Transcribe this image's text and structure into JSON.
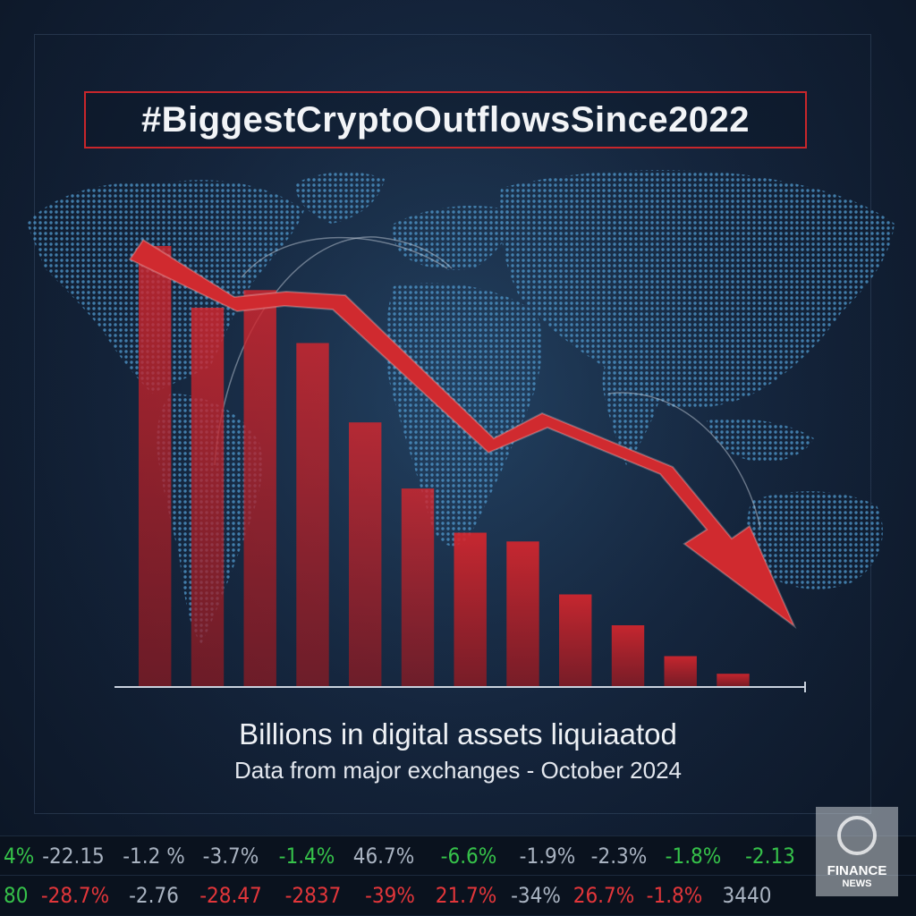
{
  "title": "#BiggestCryptoOutflowsSince2022",
  "caption_line1": "Billions in digital assets liquiaatod",
  "caption_line2": "Data from major exchanges - October 2024",
  "colors": {
    "accent_red": "#c8262b",
    "background": "#14233a",
    "map_blue": "#3f86b8",
    "ticker_green": "#36c24a",
    "ticker_red": "#e2363a"
  },
  "chart_data": {
    "type": "bar",
    "values": [
      100,
      86,
      90,
      78,
      60,
      45,
      35,
      33,
      21,
      14,
      7,
      3
    ],
    "ylim": [
      0,
      100
    ],
    "trend_arrow": "downward",
    "grid": false
  },
  "ticker": {
    "row1": [
      {
        "text": "4%",
        "tone": "green"
      },
      {
        "text": "-22.15",
        "tone": "gray"
      },
      {
        "text": "-1.2 %",
        "tone": "gray"
      },
      {
        "text": "-3.7%",
        "tone": "gray"
      },
      {
        "text": "-1.4%",
        "tone": "green"
      },
      {
        "text": "46.7%",
        "tone": "gray"
      },
      {
        "text": "-6.6%",
        "tone": "green"
      },
      {
        "text": "-1.9%",
        "tone": "gray"
      },
      {
        "text": "-2.3%",
        "tone": "gray"
      },
      {
        "text": "-1.8%",
        "tone": "green"
      },
      {
        "text": "-2.13",
        "tone": "green"
      }
    ],
    "row2": [
      {
        "text": "80",
        "tone": "green"
      },
      {
        "text": "-28.7%",
        "tone": "red"
      },
      {
        "text": "-2.76",
        "tone": "gray"
      },
      {
        "text": "-28.47",
        "tone": "red"
      },
      {
        "text": "-2837",
        "tone": "red"
      },
      {
        "text": "-39%",
        "tone": "red"
      },
      {
        "text": "21.7%",
        "tone": "red"
      },
      {
        "text": "-34%",
        "tone": "gray"
      },
      {
        "text": "26.7%",
        "tone": "red"
      },
      {
        "text": "-1.8%",
        "tone": "red"
      },
      {
        "text": "3440",
        "tone": "gray"
      }
    ]
  },
  "logo": {
    "line1": "FINANCE",
    "line2": "NEWS"
  }
}
